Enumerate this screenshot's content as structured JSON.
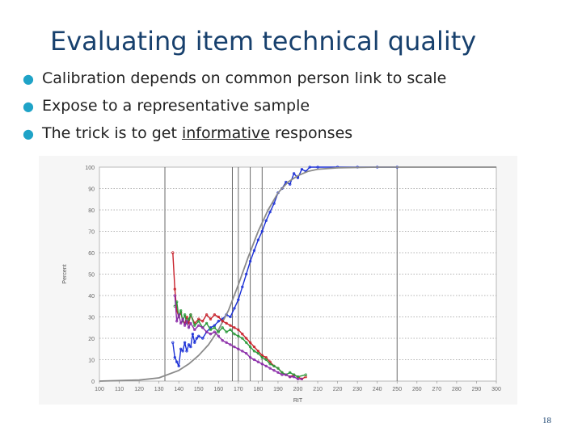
{
  "slide": {
    "title": "Evaluating item technical quality",
    "bullets": [
      {
        "text": "Calibration depends on common person link to scale"
      },
      {
        "text": "Expose to a representative sample"
      },
      {
        "before": "The trick is to get ",
        "underlined": "informative",
        "after": " responses"
      }
    ],
    "page_number": "18"
  },
  "colors": {
    "title": "#17406d",
    "bullet": "#1fa3c7",
    "blue": "#1a2fd6",
    "gray": "#8a8a8a",
    "red": "#c8202a",
    "green": "#2a9a3a",
    "purple": "#8a2aa8"
  },
  "chart_data": {
    "type": "line",
    "xlabel": "RIT",
    "ylabel": "Percent",
    "xlim": [
      100,
      300
    ],
    "ylim": [
      0,
      100
    ],
    "x_ticks": [
      "100",
      "110",
      "120",
      "130",
      "140",
      "150",
      "160",
      "170",
      "180",
      "190",
      "200",
      "210",
      "220",
      "230",
      "240",
      "250",
      "260",
      "270",
      "280",
      "290",
      "300"
    ],
    "y_ticks": [
      "0",
      "10",
      "20",
      "30",
      "40",
      "50",
      "60",
      "70",
      "80",
      "90",
      "100"
    ],
    "vlines": [
      133,
      167,
      170,
      176,
      182,
      250
    ],
    "series": [
      {
        "color": "blue",
        "points": [
          [
            137,
            18
          ],
          [
            138,
            11
          ],
          [
            139,
            9
          ],
          [
            140,
            7
          ],
          [
            141,
            15
          ],
          [
            142,
            14
          ],
          [
            143,
            18
          ],
          [
            144,
            14
          ],
          [
            145,
            17
          ],
          [
            146,
            16
          ],
          [
            147,
            22
          ],
          [
            148,
            18
          ],
          [
            149,
            20
          ],
          [
            150,
            21
          ],
          [
            152,
            20
          ],
          [
            154,
            23
          ],
          [
            156,
            25
          ],
          [
            158,
            26
          ],
          [
            160,
            28
          ],
          [
            162,
            29
          ],
          [
            164,
            31
          ],
          [
            166,
            30
          ],
          [
            168,
            34
          ],
          [
            170,
            38
          ],
          [
            172,
            44
          ],
          [
            174,
            50
          ],
          [
            176,
            56
          ],
          [
            178,
            61
          ],
          [
            180,
            66
          ],
          [
            182,
            70
          ],
          [
            184,
            75
          ],
          [
            186,
            79
          ],
          [
            188,
            83
          ],
          [
            190,
            88
          ],
          [
            192,
            90
          ],
          [
            194,
            93
          ],
          [
            196,
            92
          ],
          [
            198,
            97
          ],
          [
            200,
            95
          ],
          [
            202,
            99
          ],
          [
            204,
            98
          ],
          [
            206,
            100
          ],
          [
            210,
            100
          ],
          [
            220,
            100
          ],
          [
            230,
            100
          ],
          [
            240,
            100
          ],
          [
            250,
            100
          ]
        ]
      },
      {
        "color": "gray",
        "points": [
          [
            100,
            0
          ],
          [
            120,
            0.5
          ],
          [
            130,
            1.5
          ],
          [
            140,
            5
          ],
          [
            145,
            8
          ],
          [
            150,
            12
          ],
          [
            155,
            17
          ],
          [
            160,
            24
          ],
          [
            165,
            33
          ],
          [
            170,
            45
          ],
          [
            175,
            58
          ],
          [
            180,
            70
          ],
          [
            185,
            80
          ],
          [
            190,
            88
          ],
          [
            195,
            93
          ],
          [
            200,
            96
          ],
          [
            205,
            98
          ],
          [
            210,
            99
          ],
          [
            220,
            99.7
          ],
          [
            240,
            100
          ],
          [
            300,
            100
          ]
        ]
      },
      {
        "color": "red",
        "points": [
          [
            137,
            60
          ],
          [
            138,
            43
          ],
          [
            139,
            33
          ],
          [
            140,
            30
          ],
          [
            141,
            32
          ],
          [
            142,
            28
          ],
          [
            143,
            27
          ],
          [
            144,
            30
          ],
          [
            145,
            27
          ],
          [
            146,
            31
          ],
          [
            148,
            27
          ],
          [
            150,
            29
          ],
          [
            152,
            28
          ],
          [
            154,
            31
          ],
          [
            156,
            29
          ],
          [
            158,
            31
          ],
          [
            160,
            30
          ],
          [
            162,
            28
          ],
          [
            164,
            27
          ],
          [
            166,
            26
          ],
          [
            168,
            25
          ],
          [
            170,
            24
          ],
          [
            172,
            22
          ],
          [
            174,
            20
          ],
          [
            176,
            18
          ],
          [
            178,
            16
          ],
          [
            180,
            14
          ],
          [
            182,
            12
          ],
          [
            184,
            11
          ],
          [
            186,
            9
          ],
          [
            188,
            7
          ],
          [
            190,
            6
          ],
          [
            192,
            4
          ],
          [
            194,
            3
          ],
          [
            196,
            2
          ],
          [
            198,
            3
          ],
          [
            200,
            2
          ],
          [
            202,
            1
          ],
          [
            204,
            2
          ]
        ]
      },
      {
        "color": "green",
        "points": [
          [
            138,
            35
          ],
          [
            139,
            37
          ],
          [
            140,
            30
          ],
          [
            141,
            33
          ],
          [
            142,
            28
          ],
          [
            143,
            31
          ],
          [
            144,
            27
          ],
          [
            145,
            29
          ],
          [
            146,
            31
          ],
          [
            148,
            26
          ],
          [
            150,
            28
          ],
          [
            152,
            25
          ],
          [
            154,
            27
          ],
          [
            156,
            24
          ],
          [
            158,
            25
          ],
          [
            160,
            23
          ],
          [
            162,
            25
          ],
          [
            164,
            23
          ],
          [
            166,
            24
          ],
          [
            168,
            22
          ],
          [
            170,
            21
          ],
          [
            172,
            20
          ],
          [
            174,
            18
          ],
          [
            176,
            16
          ],
          [
            178,
            14
          ],
          [
            180,
            13
          ],
          [
            182,
            11
          ],
          [
            184,
            10
          ],
          [
            186,
            8
          ],
          [
            188,
            7
          ],
          [
            190,
            6
          ],
          [
            192,
            4
          ],
          [
            194,
            3
          ],
          [
            196,
            4
          ],
          [
            198,
            3
          ],
          [
            200,
            2
          ],
          [
            204,
            3
          ]
        ]
      },
      {
        "color": "purple",
        "points": [
          [
            138,
            40
          ],
          [
            139,
            28
          ],
          [
            140,
            31
          ],
          [
            141,
            27
          ],
          [
            142,
            29
          ],
          [
            143,
            26
          ],
          [
            144,
            28
          ],
          [
            145,
            25
          ],
          [
            146,
            27
          ],
          [
            148,
            24
          ],
          [
            150,
            26
          ],
          [
            152,
            25
          ],
          [
            154,
            23
          ],
          [
            156,
            22
          ],
          [
            158,
            23
          ],
          [
            160,
            21
          ],
          [
            162,
            19
          ],
          [
            164,
            18
          ],
          [
            166,
            17
          ],
          [
            168,
            16
          ],
          [
            170,
            15
          ],
          [
            172,
            14
          ],
          [
            174,
            13
          ],
          [
            176,
            11
          ],
          [
            178,
            10
          ],
          [
            180,
            9
          ],
          [
            182,
            8
          ],
          [
            184,
            7
          ],
          [
            186,
            6
          ],
          [
            188,
            5
          ],
          [
            190,
            4
          ],
          [
            192,
            3
          ],
          [
            194,
            3
          ],
          [
            196,
            2
          ],
          [
            198,
            2
          ],
          [
            200,
            1
          ],
          [
            202,
            1
          ]
        ]
      }
    ]
  }
}
